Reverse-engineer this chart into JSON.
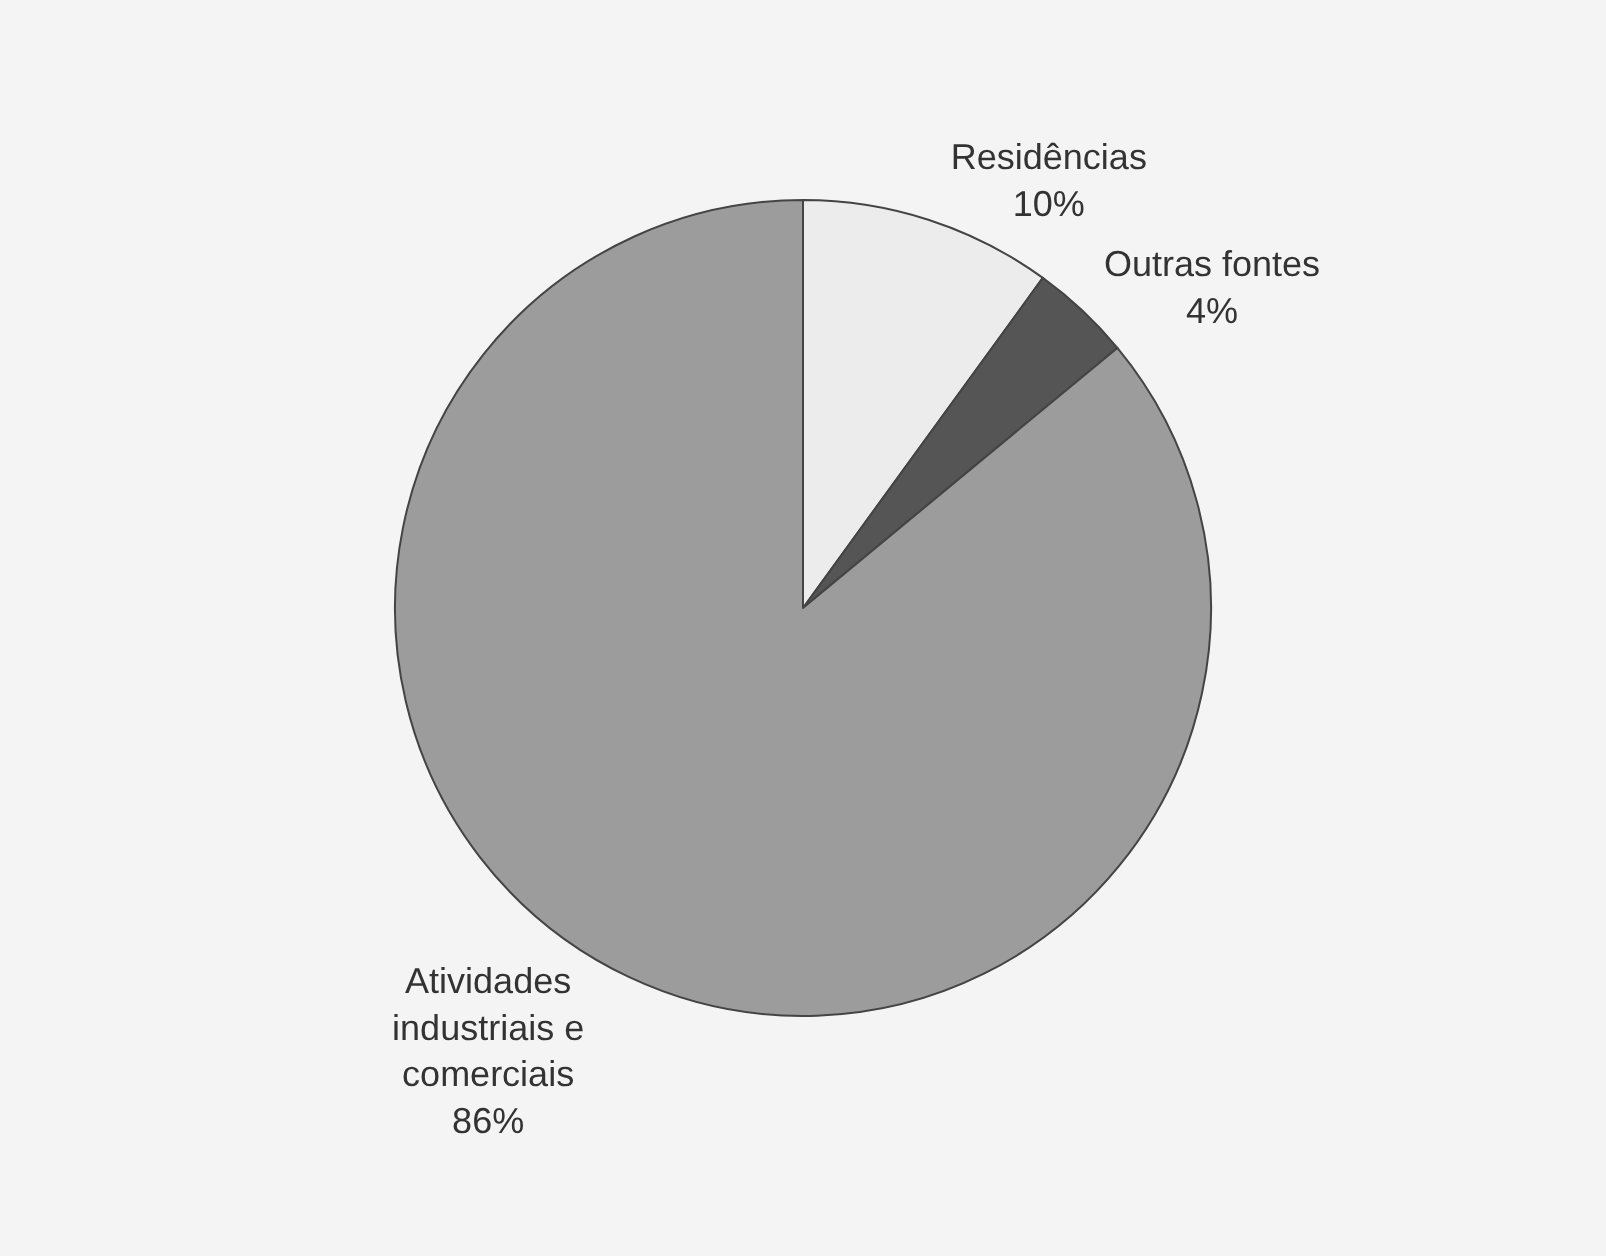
{
  "chart_data": {
    "type": "pie",
    "categories": [
      "Residências",
      "Outras fontes",
      "Atividades industriais e comerciais"
    ],
    "values": [
      10,
      4,
      86
    ],
    "value_labels": [
      "10%",
      "4%",
      "86%"
    ],
    "colors": [
      "#ececec",
      "#555555",
      "#9c9c9c"
    ],
    "legend": false
  }
}
